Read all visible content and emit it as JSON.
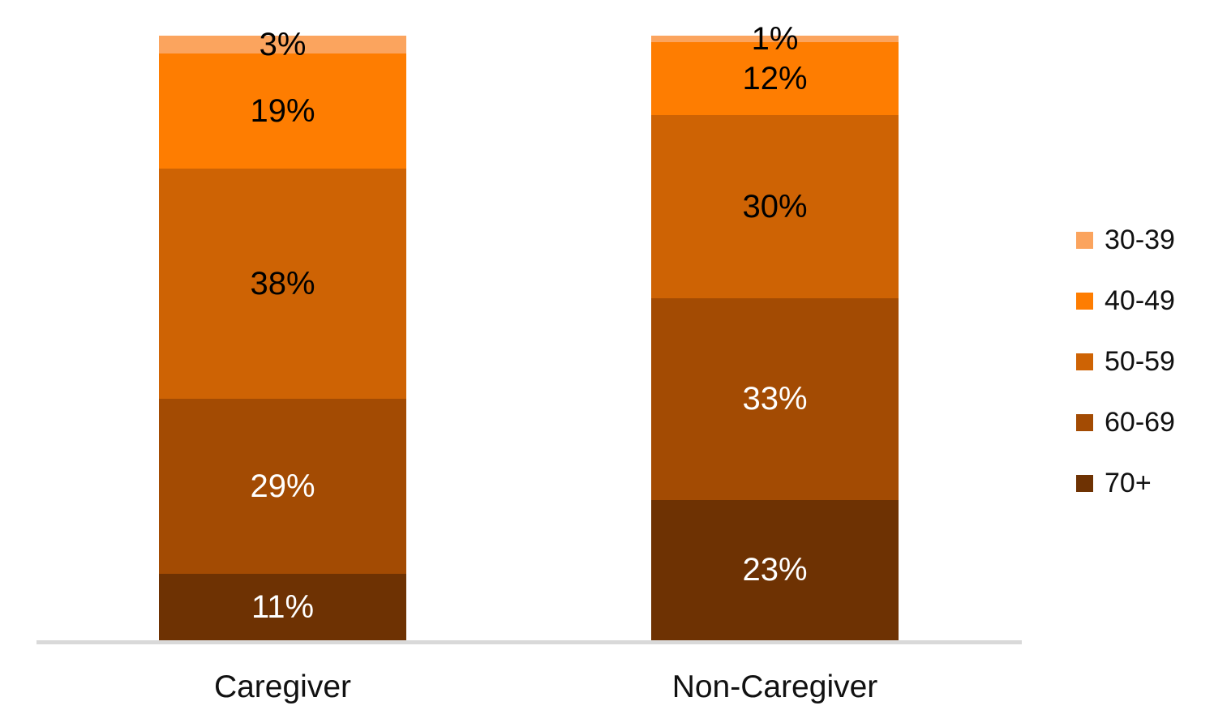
{
  "chart_data": {
    "type": "bar",
    "variant": "stacked-100-vertical",
    "title": "",
    "xlabel": "",
    "ylabel": "",
    "categories": [
      "Caregiver",
      "Non-Caregiver"
    ],
    "series": [
      {
        "name": "30-39",
        "values": [
          3,
          1
        ],
        "color": "#FBA45E",
        "label_color": "#000000"
      },
      {
        "name": "40-49",
        "values": [
          19,
          12
        ],
        "color": "#FE7D01",
        "label_color": "#000000"
      },
      {
        "name": "50-59",
        "values": [
          38,
          30
        ],
        "color": "#CE6304",
        "label_color": "#000000"
      },
      {
        "name": "60-69",
        "values": [
          29,
          33
        ],
        "color": "#A34B03",
        "label_color": "#FFFFFF"
      },
      {
        "name": "70+",
        "values": [
          11,
          23
        ],
        "color": "#6E3203",
        "label_color": "#FFFFFF"
      }
    ],
    "data_labels": [
      [
        "3%",
        "19%",
        "38%",
        "29%",
        "11%"
      ],
      [
        "1%",
        "12%",
        "30%",
        "33%",
        "23%"
      ]
    ],
    "legend": {
      "position": "right",
      "entries": [
        "30-39",
        "40-49",
        "50-59",
        "60-69",
        "70+"
      ]
    },
    "axes": {
      "baseline_color": "#D9D9D9",
      "gridlines": false,
      "y_tick_labels": []
    },
    "background_color": "#FFFFFF"
  }
}
